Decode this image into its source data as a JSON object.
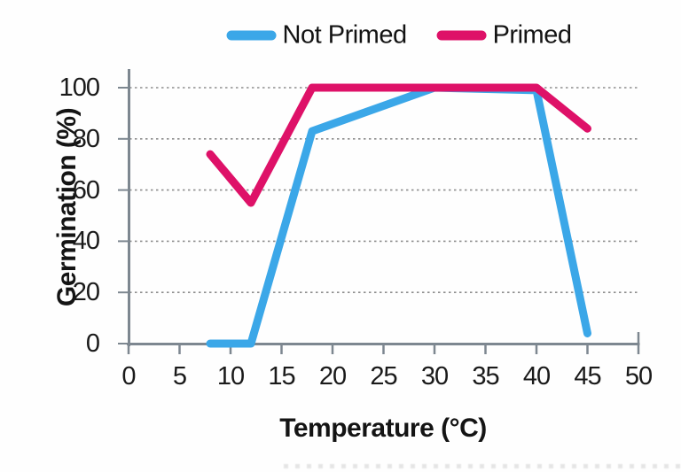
{
  "legend": {
    "items": [
      {
        "label": "Not Primed",
        "color": "#3BA7E8"
      },
      {
        "label": "Primed",
        "color": "#DE1168"
      }
    ]
  },
  "chart_data": {
    "type": "line",
    "title": "",
    "x_label": "Temperature (°C)",
    "y_label": "Germination (%)",
    "x": [
      8,
      12,
      18,
      30,
      40,
      45
    ],
    "series": [
      {
        "name": "Not Primed",
        "color": "#3BA7E8",
        "values": [
          0,
          0,
          83,
          100,
          99,
          4
        ]
      },
      {
        "name": "Primed",
        "color": "#DE1168",
        "values": [
          74,
          55,
          100,
          100,
          100,
          84
        ]
      }
    ],
    "xlim": [
      0,
      50
    ],
    "ylim": [
      0,
      100
    ],
    "x_ticks": [
      0,
      5,
      10,
      15,
      20,
      25,
      30,
      35,
      40,
      45,
      50
    ],
    "y_ticks": [
      0,
      20,
      40,
      60,
      80,
      100
    ],
    "grid": "dotted-horizontal",
    "legend_position": "top",
    "axis_color": "#7D8790",
    "grid_color": "#8D8D8D"
  }
}
